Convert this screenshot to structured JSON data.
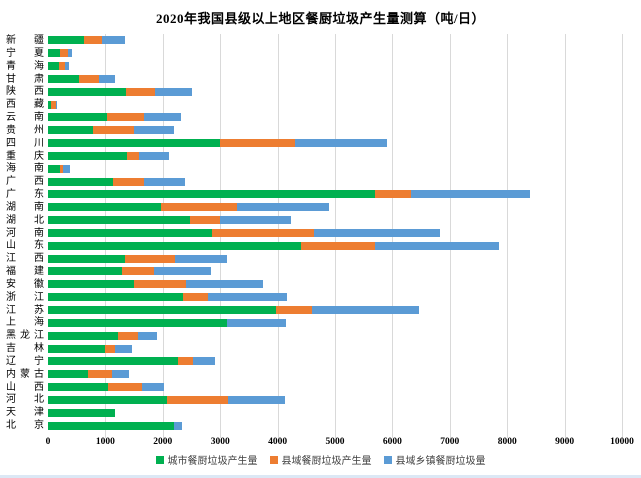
{
  "title": "2020年我国县级以上地区餐厨垃圾产生量测算（吨/日）",
  "chart_data": {
    "type": "bar",
    "orientation": "horizontal-stacked",
    "title": "2020年我国县级以上地区餐厨垃圾产生量测算（吨/日）",
    "xlabel": "",
    "ylabel": "",
    "xlim": [
      0,
      10000
    ],
    "xticks": [
      0,
      1000,
      2000,
      3000,
      4000,
      5000,
      6000,
      7000,
      8000,
      9000,
      10000
    ],
    "grid": "vertical",
    "legend_position": "bottom",
    "categories": [
      "新疆",
      "宁夏",
      "青海",
      "甘肃",
      "陕西",
      "西藏",
      "云南",
      "贵州",
      "四川",
      "重庆",
      "海南",
      "广西",
      "广东",
      "湖南",
      "湖北",
      "河南",
      "山东",
      "江西",
      "福建",
      "安徽",
      "浙江",
      "江苏",
      "上海",
      "黑龙江",
      "吉林",
      "辽宁",
      "内蒙古",
      "山西",
      "河北",
      "天津",
      "北京"
    ],
    "series": [
      {
        "name": "城市餐厨垃圾产生量",
        "color": "#00B050",
        "values": [
          630,
          210,
          190,
          540,
          1360,
          60,
          1030,
          790,
          3000,
          1380,
          210,
          1130,
          5700,
          1960,
          2470,
          2860,
          4410,
          1340,
          1290,
          1500,
          2350,
          3980,
          3110,
          1220,
          1000,
          2270,
          690,
          1050,
          2070,
          1170,
          2190
        ]
      },
      {
        "name": "县域餐厨垃圾产生量",
        "color": "#ED7D31",
        "values": [
          315,
          130,
          110,
          345,
          510,
          80,
          640,
          700,
          1300,
          200,
          50,
          550,
          620,
          1330,
          520,
          1770,
          1290,
          880,
          550,
          900,
          440,
          620,
          0,
          350,
          170,
          250,
          420,
          580,
          1070,
          0,
          0
        ]
      },
      {
        "name": "县域乡镇餐厨垃圾量",
        "color": "#5B9BD5",
        "values": [
          390,
          80,
          65,
          285,
          645,
          25,
          640,
          700,
          1600,
          530,
          120,
          700,
          2080,
          1610,
          1250,
          2200,
          2160,
          900,
          1000,
          1340,
          1370,
          1870,
          1030,
          335,
          290,
          390,
          300,
          390,
          990,
          0,
          150
        ]
      }
    ]
  }
}
